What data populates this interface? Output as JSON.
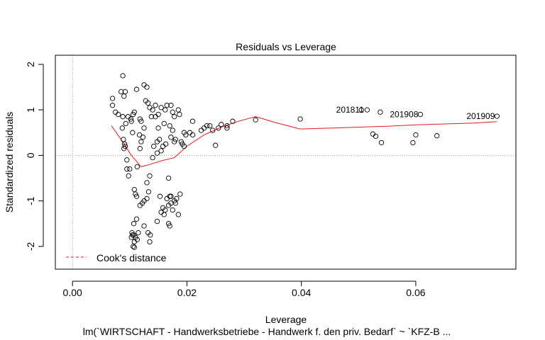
{
  "chart_data": {
    "type": "scatter",
    "title": "Residuals vs Leverage",
    "xlabel": "Leverage",
    "ylabel": "Standardized residuals",
    "subtitle": "lm(`WIRTSCHAFT - Handwerksbetriebe - Handwerk f. den priv. Bedarf` ~ `KFZ-B ...",
    "xlim": [
      -0.003,
      0.0775
    ],
    "ylim": [
      -2.5,
      2.2
    ],
    "x_ticks": [
      0.0,
      0.02,
      0.04,
      0.06
    ],
    "x_tick_labels": [
      "0.00",
      "0.02",
      "0.04",
      "0.06"
    ],
    "y_ticks": [
      -2,
      -1,
      0,
      1,
      2
    ],
    "y_tick_labels": [
      "-2",
      "-1",
      "0",
      "1",
      "2"
    ],
    "grid": false,
    "reference_lines": {
      "x": 0,
      "y": 0
    },
    "legend": {
      "position": "bottom-left",
      "entries": [
        {
          "label": "Cook's distance",
          "color": "#e41a1c",
          "style": "dashed"
        }
      ]
    },
    "points": [
      [
        0.007,
        1.25
      ],
      [
        0.007,
        1.1
      ],
      [
        0.0075,
        0.95
      ],
      [
        0.008,
        0.9
      ],
      [
        0.0085,
        1.4
      ],
      [
        0.0088,
        1.75
      ],
      [
        0.009,
        1.3
      ],
      [
        0.0092,
        1.4
      ],
      [
        0.0088,
        0.85
      ],
      [
        0.0093,
        0.7
      ],
      [
        0.0087,
        0.6
      ],
      [
        0.0089,
        0.35
      ],
      [
        0.0091,
        0.25
      ],
      [
        0.0092,
        0.2
      ],
      [
        0.009,
        0.15
      ],
      [
        0.0095,
        -0.3
      ],
      [
        0.01,
        -0.3
      ],
      [
        0.0098,
        -0.45
      ],
      [
        0.0105,
        0.5
      ],
      [
        0.0103,
        0.75
      ],
      [
        0.0106,
        0.9
      ],
      [
        0.0102,
        0.8
      ],
      [
        0.0108,
        0.95
      ],
      [
        0.0097,
        0.85
      ],
      [
        0.0095,
        -0.1
      ],
      [
        0.0108,
        -0.75
      ],
      [
        0.011,
        -0.85
      ],
      [
        0.0112,
        -0.9
      ],
      [
        0.0107,
        -1.5
      ],
      [
        0.0112,
        -1.4
      ],
      [
        0.0105,
        -1.75
      ],
      [
        0.011,
        -1.8
      ],
      [
        0.0115,
        -1.7
      ],
      [
        0.0108,
        -1.9
      ],
      [
        0.0106,
        -2.0
      ],
      [
        0.0108,
        -2.02
      ],
      [
        0.0103,
        -1.8
      ],
      [
        0.0113,
        -1.85
      ],
      [
        0.0107,
        -1.75
      ],
      [
        0.0104,
        -1.7
      ],
      [
        0.0112,
        1.45
      ],
      [
        0.0118,
        0.8
      ],
      [
        0.012,
        0.75
      ],
      [
        0.0125,
        0.6
      ],
      [
        0.0123,
        0.4
      ],
      [
        0.0117,
        0.45
      ],
      [
        0.012,
        0.3
      ],
      [
        0.0118,
        0.15
      ],
      [
        0.0113,
        -0.25
      ],
      [
        0.0122,
        -1.05
      ],
      [
        0.0118,
        -1.1
      ],
      [
        0.0125,
        -1.0
      ],
      [
        0.013,
        -0.95
      ],
      [
        0.0133,
        -0.8
      ],
      [
        0.013,
        -0.6
      ],
      [
        0.0135,
        -0.45
      ],
      [
        0.0125,
        -1.55
      ],
      [
        0.0132,
        -1.7
      ],
      [
        0.0135,
        -1.9
      ],
      [
        0.0136,
        -1.75
      ],
      [
        0.0125,
        1.55
      ],
      [
        0.013,
        1.5
      ],
      [
        0.0128,
        1.2
      ],
      [
        0.0132,
        1.15
      ],
      [
        0.0135,
        1.05
      ],
      [
        0.014,
        1.0
      ],
      [
        0.0138,
        0.85
      ],
      [
        0.0145,
        0.85
      ],
      [
        0.0142,
        0.2
      ],
      [
        0.0148,
        0.3
      ],
      [
        0.014,
        -0.05
      ],
      [
        0.0145,
        1.1
      ],
      [
        0.015,
        0.9
      ],
      [
        0.0155,
        1.05
      ],
      [
        0.015,
        0.6
      ],
      [
        0.0152,
        0.35
      ],
      [
        0.0148,
        0.05
      ],
      [
        0.0155,
        0.1
      ],
      [
        0.0153,
        -0.9
      ],
      [
        0.0158,
        -1.15
      ],
      [
        0.0155,
        -1.25
      ],
      [
        0.0148,
        -1.45
      ],
      [
        0.016,
        -1.3
      ],
      [
        0.0162,
        -1.2
      ],
      [
        0.0162,
        1.0
      ],
      [
        0.0165,
        1.1
      ],
      [
        0.016,
        0.7
      ],
      [
        0.0163,
        0.25
      ],
      [
        0.0158,
        0.2
      ],
      [
        0.0168,
        -0.5
      ],
      [
        0.0165,
        -0.95
      ],
      [
        0.017,
        -0.9
      ],
      [
        0.0172,
        -0.9
      ],
      [
        0.0168,
        -1.5
      ],
      [
        0.017,
        -1.55
      ],
      [
        0.0175,
        -1.2
      ],
      [
        0.0172,
        -1.05
      ],
      [
        0.0168,
        -1.1
      ],
      [
        0.0178,
        -1.0
      ],
      [
        0.0182,
        -0.95
      ],
      [
        0.018,
        -1.05
      ],
      [
        0.0185,
        -1.3
      ],
      [
        0.0188,
        -0.85
      ],
      [
        0.0172,
        1.1
      ],
      [
        0.0175,
        0.95
      ],
      [
        0.0178,
        0.85
      ],
      [
        0.017,
        0.65
      ],
      [
        0.0175,
        0.55
      ],
      [
        0.0172,
        0.4
      ],
      [
        0.0178,
        0.3
      ],
      [
        0.018,
        0.35
      ],
      [
        0.0185,
        1.0
      ],
      [
        0.0187,
        0.9
      ],
      [
        0.019,
        0.3
      ],
      [
        0.0192,
        0.25
      ],
      [
        0.0195,
        0.5
      ],
      [
        0.0198,
        0.45
      ],
      [
        0.0195,
        0.2
      ],
      [
        0.0205,
        0.5
      ],
      [
        0.021,
        0.75
      ],
      [
        0.021,
        0.45
      ],
      [
        0.0225,
        0.55
      ],
      [
        0.023,
        0.6
      ],
      [
        0.0235,
        0.65
      ],
      [
        0.024,
        0.65
      ],
      [
        0.0245,
        0.55
      ],
      [
        0.025,
        0.22
      ],
      [
        0.0255,
        0.6
      ],
      [
        0.026,
        0.68
      ],
      [
        0.027,
        0.6
      ],
      [
        0.027,
        0.65
      ],
      [
        0.028,
        0.75
      ],
      [
        0.032,
        0.78
      ],
      [
        0.0398,
        0.8
      ],
      [
        0.0505,
        1.0
      ],
      [
        0.0515,
        1.0
      ],
      [
        0.0525,
        0.47
      ],
      [
        0.053,
        0.42
      ],
      [
        0.0538,
        0.95
      ],
      [
        0.054,
        0.28
      ],
      [
        0.0595,
        0.28
      ],
      [
        0.06,
        0.45
      ],
      [
        0.0608,
        0.9
      ],
      [
        0.0637,
        0.43
      ],
      [
        0.0742,
        0.86
      ]
    ],
    "point_labels": [
      {
        "label": "201811",
        "x": 0.0513,
        "y": 1.0
      },
      {
        "label": "201908",
        "x": 0.0608,
        "y": 0.9
      },
      {
        "label": "201909",
        "x": 0.0742,
        "y": 0.86
      }
    ],
    "smoother": {
      "color": "#e41a1c",
      "points": [
        [
          0.0068,
          0.65
        ],
        [
          0.0085,
          0.35
        ],
        [
          0.0103,
          0.0
        ],
        [
          0.012,
          -0.25
        ],
        [
          0.0135,
          -0.2
        ],
        [
          0.0155,
          -0.12
        ],
        [
          0.0178,
          -0.05
        ],
        [
          0.02,
          0.2
        ],
        [
          0.023,
          0.45
        ],
        [
          0.026,
          0.62
        ],
        [
          0.029,
          0.75
        ],
        [
          0.032,
          0.85
        ],
        [
          0.0355,
          0.72
        ],
        [
          0.0398,
          0.58
        ],
        [
          0.0455,
          0.6
        ],
        [
          0.05,
          0.62
        ],
        [
          0.055,
          0.64
        ],
        [
          0.06,
          0.67
        ],
        [
          0.065,
          0.69
        ],
        [
          0.07,
          0.71
        ],
        [
          0.0742,
          0.74
        ]
      ]
    }
  }
}
